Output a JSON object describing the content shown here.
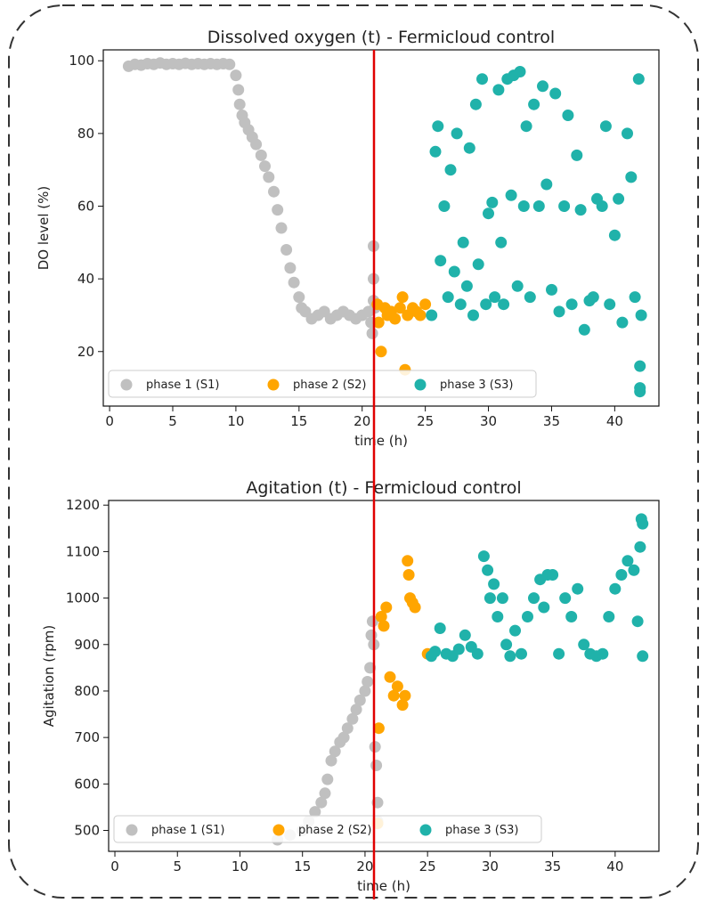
{
  "colors": {
    "phase1": "#c0c0c0",
    "phase2": "#ffa500",
    "phase3": "#20b2aa",
    "divider": "#e00000",
    "frame": "#333333"
  },
  "chart_data": [
    {
      "type": "scatter",
      "title": "Dissolved oxygen (t) - Fermicloud control",
      "xlabel": "time (h)",
      "ylabel": "DO level (%)",
      "xlim": [
        -0.5,
        43.5
      ],
      "ylim": [
        5,
        103
      ],
      "xticks": [
        0,
        5,
        10,
        15,
        20,
        25,
        30,
        35,
        40
      ],
      "yticks": [
        20,
        40,
        60,
        80,
        100
      ],
      "vline_x": 21.2,
      "legend": "bottom-left",
      "series": [
        {
          "name": "phase 1 (S1)",
          "color_key": "phase1",
          "points": [
            [
              1.5,
              98.5
            ],
            [
              2,
              99
            ],
            [
              2.5,
              98.8
            ],
            [
              3,
              99.2
            ],
            [
              3.5,
              99
            ],
            [
              4,
              99.4
            ],
            [
              4.5,
              99
            ],
            [
              5,
              99.2
            ],
            [
              5.5,
              99
            ],
            [
              6,
              99.3
            ],
            [
              6.5,
              99
            ],
            [
              7,
              99.2
            ],
            [
              7.5,
              99
            ],
            [
              8,
              99.2
            ],
            [
              8.5,
              99
            ],
            [
              9,
              99.2
            ],
            [
              9.5,
              99
            ],
            [
              10,
              96
            ],
            [
              10.2,
              92
            ],
            [
              10.3,
              88
            ],
            [
              10.5,
              85
            ],
            [
              10.7,
              83
            ],
            [
              11,
              81
            ],
            [
              11.3,
              79
            ],
            [
              11.6,
              77
            ],
            [
              12,
              74
            ],
            [
              12.3,
              71
            ],
            [
              12.6,
              68
            ],
            [
              13,
              64
            ],
            [
              13.3,
              59
            ],
            [
              13.6,
              54
            ],
            [
              14,
              48
            ],
            [
              14.3,
              43
            ],
            [
              14.6,
              39
            ],
            [
              15,
              35
            ],
            [
              15.2,
              32
            ],
            [
              15.5,
              31
            ],
            [
              16,
              29
            ],
            [
              16.5,
              30
            ],
            [
              17,
              31
            ],
            [
              17.5,
              29
            ],
            [
              18,
              30
            ],
            [
              18.5,
              31
            ],
            [
              19,
              30
            ],
            [
              19.5,
              29
            ],
            [
              20,
              30
            ],
            [
              20.5,
              31
            ],
            [
              20.7,
              28
            ],
            [
              20.8,
              25
            ],
            [
              20.9,
              34
            ],
            [
              20.9,
              49
            ],
            [
              20.9,
              40
            ],
            [
              21,
              32
            ]
          ]
        },
        {
          "name": "phase 2 (S2)",
          "color_key": "phase2",
          "points": [
            [
              21.2,
              33
            ],
            [
              21.3,
              28
            ],
            [
              21.5,
              20
            ],
            [
              21.8,
              32
            ],
            [
              22,
              30
            ],
            [
              22.3,
              31
            ],
            [
              22.6,
              29
            ],
            [
              23,
              32
            ],
            [
              23.2,
              35
            ],
            [
              23.4,
              15
            ],
            [
              23.6,
              30
            ],
            [
              24,
              32
            ],
            [
              24.3,
              31
            ],
            [
              24.6,
              30
            ],
            [
              25,
              33
            ]
          ]
        },
        {
          "name": "phase 3 (S3)",
          "color_key": "phase3",
          "points": [
            [
              25.5,
              30
            ],
            [
              25.8,
              75
            ],
            [
              26,
              82
            ],
            [
              26.2,
              45
            ],
            [
              26.5,
              60
            ],
            [
              26.8,
              35
            ],
            [
              27,
              70
            ],
            [
              27.3,
              42
            ],
            [
              27.5,
              80
            ],
            [
              27.8,
              33
            ],
            [
              28,
              50
            ],
            [
              28.3,
              38
            ],
            [
              28.5,
              76
            ],
            [
              28.8,
              30
            ],
            [
              29,
              88
            ],
            [
              29.2,
              44
            ],
            [
              29.5,
              95
            ],
            [
              29.8,
              33
            ],
            [
              30,
              58
            ],
            [
              30.3,
              61
            ],
            [
              30.5,
              35
            ],
            [
              30.8,
              92
            ],
            [
              31,
              50
            ],
            [
              31.2,
              33
            ],
            [
              31.5,
              95
            ],
            [
              31.8,
              63
            ],
            [
              32,
              96
            ],
            [
              32.3,
              38
            ],
            [
              32.5,
              97
            ],
            [
              32.8,
              60
            ],
            [
              33,
              82
            ],
            [
              33.3,
              35
            ],
            [
              33.6,
              88
            ],
            [
              34,
              60
            ],
            [
              34.3,
              93
            ],
            [
              34.6,
              66
            ],
            [
              35,
              37
            ],
            [
              35.3,
              91
            ],
            [
              35.6,
              31
            ],
            [
              36,
              60
            ],
            [
              36.3,
              85
            ],
            [
              36.6,
              33
            ],
            [
              37,
              74
            ],
            [
              37.3,
              59
            ],
            [
              37.6,
              26
            ],
            [
              38,
              34
            ],
            [
              38.3,
              35
            ],
            [
              38.6,
              62
            ],
            [
              39,
              60
            ],
            [
              39.3,
              82
            ],
            [
              39.6,
              33
            ],
            [
              40,
              52
            ],
            [
              40.3,
              62
            ],
            [
              40.6,
              28
            ],
            [
              41,
              80
            ],
            [
              41.3,
              68
            ],
            [
              41.6,
              35
            ],
            [
              41.9,
              95
            ],
            [
              42,
              16
            ],
            [
              42,
              10
            ],
            [
              42,
              9
            ],
            [
              42.1,
              30
            ]
          ]
        }
      ]
    },
    {
      "type": "scatter",
      "title": "Agitation (t) - Fermicloud control",
      "xlabel": "time (h)",
      "ylabel": "Agitation (rpm)",
      "xlim": [
        -0.5,
        43.5
      ],
      "ylim": [
        455,
        1210
      ],
      "xticks": [
        0,
        5,
        10,
        15,
        20,
        25,
        30,
        35,
        40
      ],
      "yticks": [
        500,
        600,
        700,
        800,
        900,
        1000,
        1100,
        1200
      ],
      "vline_x": 21.0,
      "legend": "bottom-left",
      "series": [
        {
          "name": "phase 1 (S1)",
          "color_key": "phase1",
          "points": [
            [
              13,
              480
            ],
            [
              14,
              490
            ],
            [
              15,
              500
            ],
            [
              15.5,
              520
            ],
            [
              16,
              540
            ],
            [
              16.5,
              560
            ],
            [
              16.8,
              580
            ],
            [
              17,
              610
            ],
            [
              17.3,
              650
            ],
            [
              17.6,
              670
            ],
            [
              18,
              690
            ],
            [
              18.3,
              700
            ],
            [
              18.6,
              720
            ],
            [
              19,
              740
            ],
            [
              19.3,
              760
            ],
            [
              19.6,
              780
            ],
            [
              20,
              800
            ],
            [
              20.2,
              820
            ],
            [
              20.4,
              850
            ],
            [
              20.5,
              920
            ],
            [
              20.6,
              950
            ],
            [
              20.7,
              900
            ],
            [
              20.8,
              680
            ],
            [
              20.9,
              640
            ],
            [
              21,
              560
            ],
            [
              21,
              520
            ]
          ]
        },
        {
          "name": "phase 2 (S2)",
          "color_key": "phase2",
          "points": [
            [
              21,
              515
            ],
            [
              21.1,
              720
            ],
            [
              21.3,
              960
            ],
            [
              21.5,
              940
            ],
            [
              21.7,
              980
            ],
            [
              22,
              830
            ],
            [
              22.3,
              790
            ],
            [
              22.6,
              810
            ],
            [
              23,
              770
            ],
            [
              23.2,
              790
            ],
            [
              23.4,
              1080
            ],
            [
              23.5,
              1050
            ],
            [
              23.6,
              1000
            ],
            [
              23.8,
              990
            ],
            [
              24,
              980
            ],
            [
              25,
              880
            ]
          ]
        },
        {
          "name": "phase 3 (S3)",
          "color_key": "phase3",
          "points": [
            [
              25.3,
              875
            ],
            [
              25.6,
              885
            ],
            [
              26,
              935
            ],
            [
              26.5,
              880
            ],
            [
              27,
              875
            ],
            [
              27.5,
              890
            ],
            [
              28,
              920
            ],
            [
              28.5,
              895
            ],
            [
              29,
              880
            ],
            [
              29.5,
              1090
            ],
            [
              29.8,
              1060
            ],
            [
              30,
              1000
            ],
            [
              30.3,
              1030
            ],
            [
              30.6,
              960
            ],
            [
              31,
              1000
            ],
            [
              31.3,
              900
            ],
            [
              31.6,
              875
            ],
            [
              32,
              930
            ],
            [
              32.5,
              880
            ],
            [
              33,
              960
            ],
            [
              33.5,
              1000
            ],
            [
              34,
              1040
            ],
            [
              34.3,
              980
            ],
            [
              34.6,
              1050
            ],
            [
              35,
              1050
            ],
            [
              35.5,
              880
            ],
            [
              36,
              1000
            ],
            [
              36.5,
              960
            ],
            [
              37,
              1020
            ],
            [
              37.5,
              900
            ],
            [
              38,
              880
            ],
            [
              38.5,
              875
            ],
            [
              39,
              880
            ],
            [
              39.5,
              960
            ],
            [
              40,
              1020
            ],
            [
              40.5,
              1050
            ],
            [
              41,
              1080
            ],
            [
              41.5,
              1060
            ],
            [
              41.8,
              950
            ],
            [
              42,
              1110
            ],
            [
              42.1,
              1170
            ],
            [
              42.2,
              1160
            ],
            [
              42.2,
              875
            ]
          ]
        }
      ]
    }
  ]
}
